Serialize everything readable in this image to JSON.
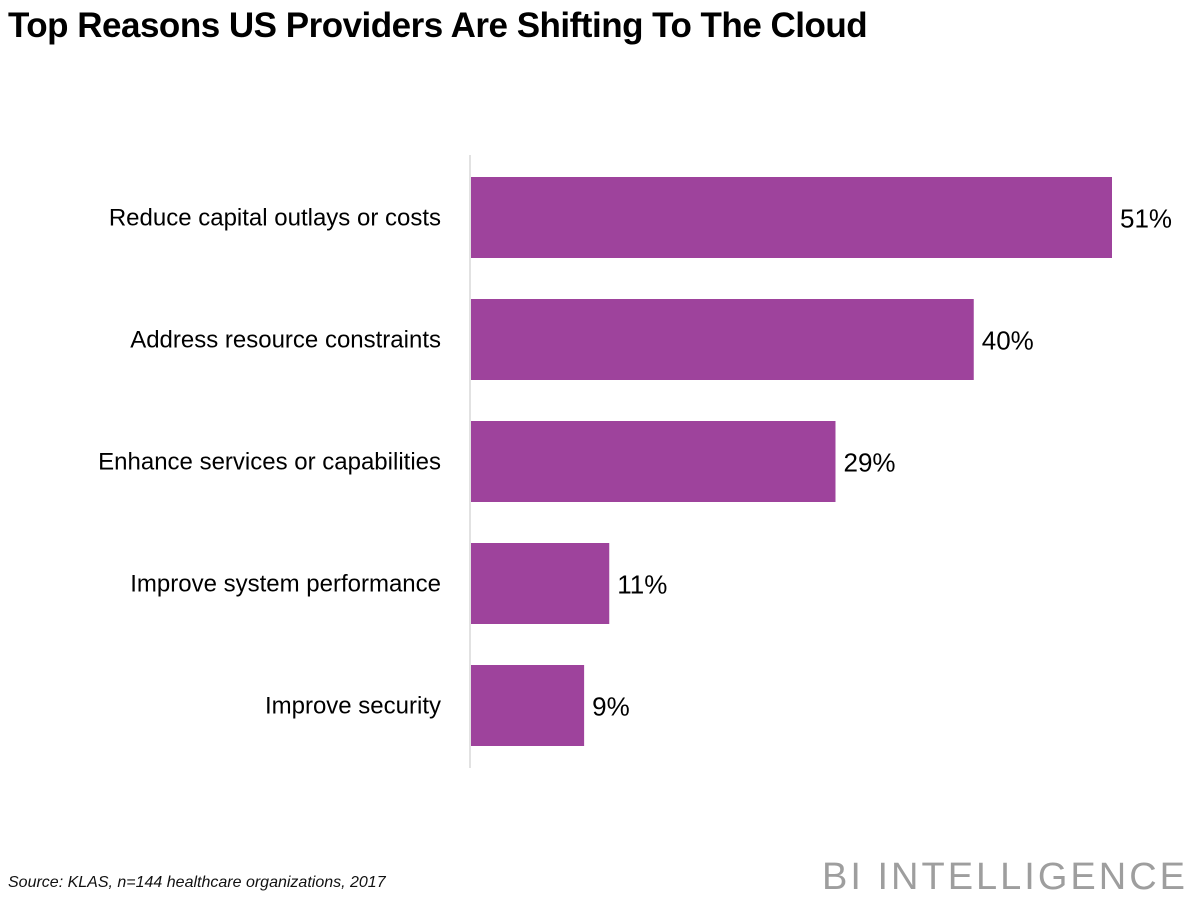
{
  "chart_data": {
    "type": "bar",
    "orientation": "horizontal",
    "title": "Top Reasons US Providers Are Shifting To The Cloud",
    "categories": [
      "Reduce capital outlays or costs",
      "Address resource constraints",
      "Enhance services or capabilities",
      "Improve system performance",
      "Improve security"
    ],
    "values": [
      51,
      40,
      29,
      11,
      9
    ],
    "value_labels": [
      "51%",
      "40%",
      "29%",
      "11%",
      "9%"
    ],
    "unit": "%",
    "xlabel": "",
    "ylabel": "",
    "xlim": [
      0,
      51
    ],
    "grid": false,
    "legend": "none",
    "bar_color": "#9e439c"
  },
  "footer": {
    "source": "Source: KLAS, n=144 healthcare organizations, 2017",
    "brand": "BI INTELLIGENCE"
  }
}
